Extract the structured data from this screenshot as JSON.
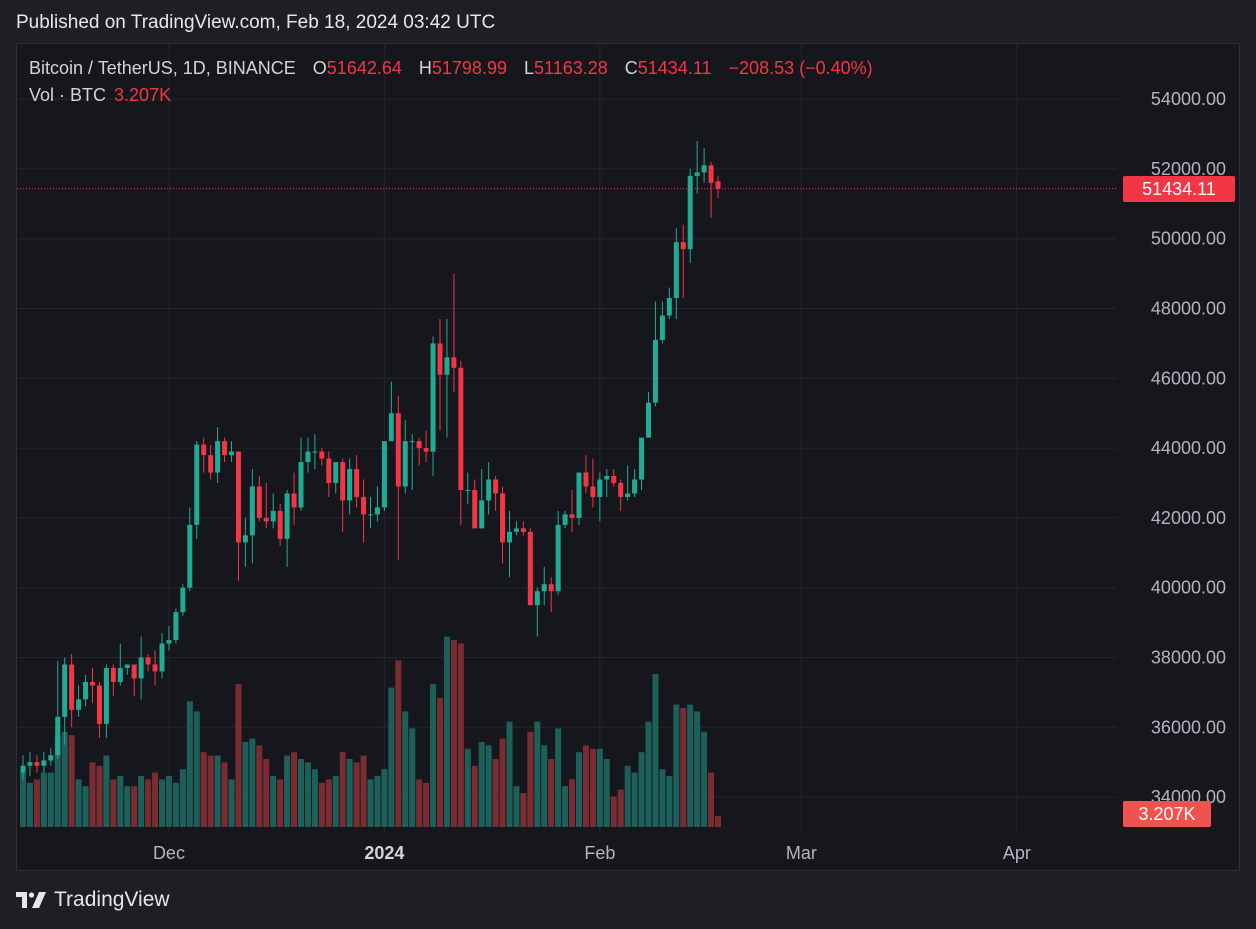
{
  "header": {
    "published": "Published on TradingView.com, Feb 18, 2024 03:42 UTC"
  },
  "legend": {
    "symbol": "Bitcoin / TetherUS, 1D, BINANCE",
    "open_label": "O",
    "open": "51642.64",
    "high_label": "H",
    "high": "51798.99",
    "low_label": "L",
    "low": "51163.28",
    "close_label": "C",
    "close": "51434.11",
    "change": "−208.53 (−0.40%)",
    "vol_label": "Vol · BTC",
    "vol_value": "3.207K"
  },
  "price_tag": "51434.11",
  "volume_tag": "3.207K",
  "brand": {
    "name": "TradingView",
    "logo_icon": "tradingview-logo-icon"
  },
  "colors": {
    "up": "#22ab94",
    "down": "#f23645",
    "vol_up": "#1d5f59",
    "vol_down": "#7a2c33",
    "grid": "#24262d",
    "background": "#16171c"
  },
  "chart_data": {
    "type": "candlestick",
    "symbol": "BTCUSDT",
    "interval": "1D",
    "exchange": "BINANCE",
    "y_ticks": [
      "34000.00",
      "36000.00",
      "38000.00",
      "40000.00",
      "42000.00",
      "44000.00",
      "46000.00",
      "48000.00",
      "50000.00",
      "52000.00",
      "54000.00"
    ],
    "x_ticks": [
      {
        "label": "Dec",
        "date": "2023-12-01",
        "bold": false
      },
      {
        "label": "2024",
        "date": "2024-01-01",
        "bold": true
      },
      {
        "label": "Feb",
        "date": "2024-02-01",
        "bold": false
      },
      {
        "label": "Mar",
        "date": "2024-03-01",
        "bold": false
      },
      {
        "label": "Apr",
        "date": "2024-04-01",
        "bold": false
      }
    ],
    "last_price": 51434.11,
    "candles": [
      {
        "d": "2023-11-10",
        "o": 34700,
        "h": 35200,
        "l": 34500,
        "c": 34900,
        "v": 16
      },
      {
        "d": "2023-11-11",
        "o": 34900,
        "h": 35300,
        "l": 34600,
        "c": 35000,
        "v": 13
      },
      {
        "d": "2023-11-12",
        "o": 35000,
        "h": 35200,
        "l": 34700,
        "c": 34900,
        "v": 14
      },
      {
        "d": "2023-11-13",
        "o": 34900,
        "h": 35300,
        "l": 34700,
        "c": 35050,
        "v": 16
      },
      {
        "d": "2023-11-14",
        "o": 35050,
        "h": 35400,
        "l": 34900,
        "c": 35200,
        "v": 16
      },
      {
        "d": "2023-11-15",
        "o": 35200,
        "h": 37900,
        "l": 35100,
        "c": 36300,
        "v": 27
      },
      {
        "d": "2023-11-16",
        "o": 36300,
        "h": 38000,
        "l": 35500,
        "c": 37800,
        "v": 28
      },
      {
        "d": "2023-11-17",
        "o": 37800,
        "h": 38100,
        "l": 36000,
        "c": 36500,
        "v": 27
      },
      {
        "d": "2023-11-18",
        "o": 36500,
        "h": 37200,
        "l": 36300,
        "c": 36800,
        "v": 14
      },
      {
        "d": "2023-11-19",
        "o": 36800,
        "h": 37500,
        "l": 36600,
        "c": 37300,
        "v": 12
      },
      {
        "d": "2023-11-20",
        "o": 37300,
        "h": 37700,
        "l": 36700,
        "c": 37200,
        "v": 19
      },
      {
        "d": "2023-11-21",
        "o": 37200,
        "h": 37300,
        "l": 35700,
        "c": 36100,
        "v": 18
      },
      {
        "d": "2023-11-22",
        "o": 36100,
        "h": 37800,
        "l": 35700,
        "c": 37700,
        "v": 21
      },
      {
        "d": "2023-11-23",
        "o": 37700,
        "h": 37800,
        "l": 36900,
        "c": 37300,
        "v": 14
      },
      {
        "d": "2023-11-24",
        "o": 37300,
        "h": 38400,
        "l": 37200,
        "c": 37700,
        "v": 15
      },
      {
        "d": "2023-11-25",
        "o": 37700,
        "h": 37800,
        "l": 37500,
        "c": 37800,
        "v": 12
      },
      {
        "d": "2023-11-26",
        "o": 37800,
        "h": 37800,
        "l": 36900,
        "c": 37400,
        "v": 12
      },
      {
        "d": "2023-11-27",
        "o": 37400,
        "h": 38600,
        "l": 36800,
        "c": 38000,
        "v": 15
      },
      {
        "d": "2023-11-28",
        "o": 38000,
        "h": 38100,
        "l": 37600,
        "c": 37800,
        "v": 14
      },
      {
        "d": "2023-11-29",
        "o": 37800,
        "h": 38200,
        "l": 37200,
        "c": 37600,
        "v": 16
      },
      {
        "d": "2023-11-30",
        "o": 37600,
        "h": 38700,
        "l": 37400,
        "c": 38400,
        "v": 14
      },
      {
        "d": "2023-12-01",
        "o": 38400,
        "h": 38900,
        "l": 38200,
        "c": 38500,
        "v": 15
      },
      {
        "d": "2023-12-02",
        "o": 38500,
        "h": 39400,
        "l": 38400,
        "c": 39300,
        "v": 13
      },
      {
        "d": "2023-12-03",
        "o": 39300,
        "h": 40100,
        "l": 39200,
        "c": 40000,
        "v": 17
      },
      {
        "d": "2023-12-04",
        "o": 40000,
        "h": 42300,
        "l": 39900,
        "c": 41800,
        "v": 37
      },
      {
        "d": "2023-12-05",
        "o": 41800,
        "h": 44200,
        "l": 41400,
        "c": 44100,
        "v": 34
      },
      {
        "d": "2023-12-06",
        "o": 44100,
        "h": 44300,
        "l": 43300,
        "c": 43800,
        "v": 22
      },
      {
        "d": "2023-12-07",
        "o": 43800,
        "h": 44100,
        "l": 43100,
        "c": 43300,
        "v": 21
      },
      {
        "d": "2023-12-08",
        "o": 43300,
        "h": 44600,
        "l": 43000,
        "c": 44200,
        "v": 21
      },
      {
        "d": "2023-12-09",
        "o": 44200,
        "h": 44300,
        "l": 43600,
        "c": 43800,
        "v": 19
      },
      {
        "d": "2023-12-10",
        "o": 43800,
        "h": 44200,
        "l": 43600,
        "c": 43900,
        "v": 14
      },
      {
        "d": "2023-12-11",
        "o": 43900,
        "h": 43900,
        "l": 40200,
        "c": 41300,
        "v": 42
      },
      {
        "d": "2023-12-12",
        "o": 41300,
        "h": 42000,
        "l": 40600,
        "c": 41500,
        "v": 25
      },
      {
        "d": "2023-12-13",
        "o": 41500,
        "h": 43400,
        "l": 40700,
        "c": 42900,
        "v": 26
      },
      {
        "d": "2023-12-14",
        "o": 42900,
        "h": 43200,
        "l": 41900,
        "c": 42000,
        "v": 24
      },
      {
        "d": "2023-12-15",
        "o": 42000,
        "h": 43000,
        "l": 41700,
        "c": 41900,
        "v": 20
      },
      {
        "d": "2023-12-16",
        "o": 41900,
        "h": 42700,
        "l": 41700,
        "c": 42200,
        "v": 15
      },
      {
        "d": "2023-12-17",
        "o": 42200,
        "h": 42400,
        "l": 41200,
        "c": 41400,
        "v": 14
      },
      {
        "d": "2023-12-18",
        "o": 41400,
        "h": 42800,
        "l": 40600,
        "c": 42700,
        "v": 21
      },
      {
        "d": "2023-12-19",
        "o": 42700,
        "h": 43300,
        "l": 41800,
        "c": 42300,
        "v": 22
      },
      {
        "d": "2023-12-20",
        "o": 42300,
        "h": 44300,
        "l": 42200,
        "c": 43600,
        "v": 20
      },
      {
        "d": "2023-12-21",
        "o": 43600,
        "h": 44300,
        "l": 43300,
        "c": 43900,
        "v": 19
      },
      {
        "d": "2023-12-22",
        "o": 43900,
        "h": 44400,
        "l": 43400,
        "c": 43900,
        "v": 17
      },
      {
        "d": "2023-12-23",
        "o": 43900,
        "h": 44000,
        "l": 43500,
        "c": 43700,
        "v": 13
      },
      {
        "d": "2023-12-24",
        "o": 43700,
        "h": 43900,
        "l": 42600,
        "c": 43000,
        "v": 14
      },
      {
        "d": "2023-12-25",
        "o": 43000,
        "h": 43600,
        "l": 42700,
        "c": 43600,
        "v": 15
      },
      {
        "d": "2023-12-26",
        "o": 43600,
        "h": 43700,
        "l": 41600,
        "c": 42500,
        "v": 22
      },
      {
        "d": "2023-12-27",
        "o": 42500,
        "h": 43700,
        "l": 42100,
        "c": 43400,
        "v": 20
      },
      {
        "d": "2023-12-28",
        "o": 43400,
        "h": 43800,
        "l": 42300,
        "c": 42600,
        "v": 19
      },
      {
        "d": "2023-12-29",
        "o": 42600,
        "h": 43100,
        "l": 41300,
        "c": 42100,
        "v": 21
      },
      {
        "d": "2023-12-30",
        "o": 42100,
        "h": 42600,
        "l": 41700,
        "c": 42100,
        "v": 14
      },
      {
        "d": "2023-12-31",
        "o": 42100,
        "h": 42900,
        "l": 41900,
        "c": 42300,
        "v": 15
      },
      {
        "d": "2024-01-01",
        "o": 42300,
        "h": 44200,
        "l": 42200,
        "c": 44200,
        "v": 17
      },
      {
        "d": "2024-01-02",
        "o": 44200,
        "h": 45900,
        "l": 44200,
        "c": 45000,
        "v": 41
      },
      {
        "d": "2024-01-03",
        "o": 45000,
        "h": 45500,
        "l": 40800,
        "c": 42900,
        "v": 49
      },
      {
        "d": "2024-01-04",
        "o": 42900,
        "h": 44800,
        "l": 42700,
        "c": 44200,
        "v": 34
      },
      {
        "d": "2024-01-05",
        "o": 44200,
        "h": 44400,
        "l": 42800,
        "c": 44200,
        "v": 29
      },
      {
        "d": "2024-01-06",
        "o": 44200,
        "h": 44300,
        "l": 43500,
        "c": 44000,
        "v": 14
      },
      {
        "d": "2024-01-07",
        "o": 44000,
        "h": 44500,
        "l": 43600,
        "c": 43900,
        "v": 13
      },
      {
        "d": "2024-01-08",
        "o": 43900,
        "h": 47200,
        "l": 43200,
        "c": 47000,
        "v": 42
      },
      {
        "d": "2024-01-09",
        "o": 47000,
        "h": 47700,
        "l": 44500,
        "c": 46100,
        "v": 38
      },
      {
        "d": "2024-01-10",
        "o": 46100,
        "h": 47700,
        "l": 44300,
        "c": 46600,
        "v": 56
      },
      {
        "d": "2024-01-11",
        "o": 46600,
        "h": 49000,
        "l": 45600,
        "c": 46300,
        "v": 55
      },
      {
        "d": "2024-01-12",
        "o": 46300,
        "h": 46500,
        "l": 41800,
        "c": 42800,
        "v": 54
      },
      {
        "d": "2024-01-13",
        "o": 42800,
        "h": 43300,
        "l": 42400,
        "c": 42800,
        "v": 23
      },
      {
        "d": "2024-01-14",
        "o": 42800,
        "h": 43100,
        "l": 41700,
        "c": 41700,
        "v": 18
      },
      {
        "d": "2024-01-15",
        "o": 41700,
        "h": 43400,
        "l": 41700,
        "c": 42500,
        "v": 25
      },
      {
        "d": "2024-01-16",
        "o": 42500,
        "h": 43600,
        "l": 42100,
        "c": 43100,
        "v": 24
      },
      {
        "d": "2024-01-17",
        "o": 43100,
        "h": 43200,
        "l": 42200,
        "c": 42700,
        "v": 20
      },
      {
        "d": "2024-01-18",
        "o": 42700,
        "h": 42900,
        "l": 40700,
        "c": 41300,
        "v": 26
      },
      {
        "d": "2024-01-19",
        "o": 41300,
        "h": 42200,
        "l": 40300,
        "c": 41600,
        "v": 31
      },
      {
        "d": "2024-01-20",
        "o": 41600,
        "h": 41900,
        "l": 41500,
        "c": 41700,
        "v": 12
      },
      {
        "d": "2024-01-21",
        "o": 41700,
        "h": 41900,
        "l": 41500,
        "c": 41600,
        "v": 10
      },
      {
        "d": "2024-01-22",
        "o": 41600,
        "h": 41700,
        "l": 39500,
        "c": 39500,
        "v": 28
      },
      {
        "d": "2024-01-23",
        "o": 39500,
        "h": 40000,
        "l": 38600,
        "c": 39900,
        "v": 31
      },
      {
        "d": "2024-01-24",
        "o": 39900,
        "h": 40600,
        "l": 39500,
        "c": 40100,
        "v": 24
      },
      {
        "d": "2024-01-25",
        "o": 40100,
        "h": 40300,
        "l": 39300,
        "c": 39900,
        "v": 20
      },
      {
        "d": "2024-01-26",
        "o": 39900,
        "h": 42200,
        "l": 39800,
        "c": 41800,
        "v": 29
      },
      {
        "d": "2024-01-27",
        "o": 41800,
        "h": 42200,
        "l": 41700,
        "c": 42100,
        "v": 12
      },
      {
        "d": "2024-01-28",
        "o": 42100,
        "h": 42800,
        "l": 41600,
        "c": 42000,
        "v": 14
      },
      {
        "d": "2024-01-29",
        "o": 42000,
        "h": 43300,
        "l": 41800,
        "c": 43300,
        "v": 22
      },
      {
        "d": "2024-01-30",
        "o": 43300,
        "h": 43800,
        "l": 42700,
        "c": 42900,
        "v": 24
      },
      {
        "d": "2024-01-31",
        "o": 42900,
        "h": 43700,
        "l": 42300,
        "c": 42600,
        "v": 23
      },
      {
        "d": "2024-02-01",
        "o": 42600,
        "h": 43300,
        "l": 41900,
        "c": 43100,
        "v": 23
      },
      {
        "d": "2024-02-02",
        "o": 43100,
        "h": 43400,
        "l": 42600,
        "c": 43200,
        "v": 20
      },
      {
        "d": "2024-02-03",
        "o": 43200,
        "h": 43400,
        "l": 42900,
        "c": 43000,
        "v": 9
      },
      {
        "d": "2024-02-04",
        "o": 43000,
        "h": 43100,
        "l": 42200,
        "c": 42600,
        "v": 11
      },
      {
        "d": "2024-02-05",
        "o": 42600,
        "h": 43500,
        "l": 42500,
        "c": 42700,
        "v": 18
      },
      {
        "d": "2024-02-06",
        "o": 42700,
        "h": 43400,
        "l": 42600,
        "c": 43100,
        "v": 16
      },
      {
        "d": "2024-02-07",
        "o": 43100,
        "h": 44300,
        "l": 42800,
        "c": 44300,
        "v": 22
      },
      {
        "d": "2024-02-08",
        "o": 44300,
        "h": 45600,
        "l": 44300,
        "c": 45300,
        "v": 31
      },
      {
        "d": "2024-02-09",
        "o": 45300,
        "h": 48200,
        "l": 45200,
        "c": 47100,
        "v": 45
      },
      {
        "d": "2024-02-10",
        "o": 47100,
        "h": 48200,
        "l": 47000,
        "c": 47800,
        "v": 17
      },
      {
        "d": "2024-02-11",
        "o": 47800,
        "h": 48600,
        "l": 47700,
        "c": 48300,
        "v": 15
      },
      {
        "d": "2024-02-12",
        "o": 48300,
        "h": 50300,
        "l": 47700,
        "c": 49900,
        "v": 36
      },
      {
        "d": "2024-02-13",
        "o": 49900,
        "h": 50400,
        "l": 48300,
        "c": 49700,
        "v": 35
      },
      {
        "d": "2024-02-14",
        "o": 49700,
        "h": 52000,
        "l": 49300,
        "c": 51800,
        "v": 36
      },
      {
        "d": "2024-02-15",
        "o": 51800,
        "h": 52800,
        "l": 51300,
        "c": 51900,
        "v": 34
      },
      {
        "d": "2024-02-16",
        "o": 51900,
        "h": 52600,
        "l": 51600,
        "c": 52100,
        "v": 28
      },
      {
        "d": "2024-02-17",
        "o": 52100,
        "h": 52200,
        "l": 50600,
        "c": 51600,
        "v": 16
      },
      {
        "d": "2024-02-18",
        "o": 51642.64,
        "h": 51798.99,
        "l": 51163.28,
        "c": 51434.11,
        "v": 3.207
      }
    ]
  }
}
